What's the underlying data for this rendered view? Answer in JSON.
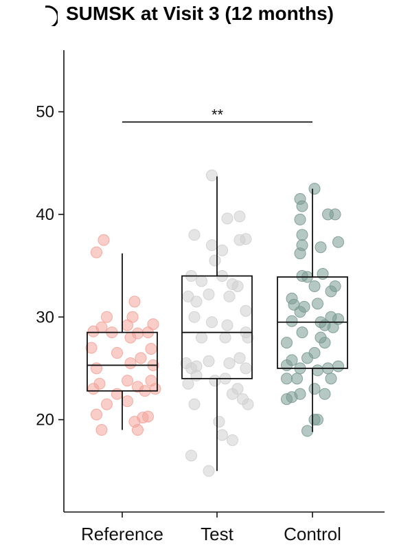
{
  "chart_data": {
    "type": "box",
    "title": "SUMSK at Visit 3 (12 months)",
    "xlabel": "",
    "ylabel": "",
    "categories": [
      "Reference",
      "Test",
      "Control"
    ],
    "ylim": [
      11,
      56
    ],
    "yticks": [
      20,
      30,
      40,
      50
    ],
    "grid": false,
    "colors": {
      "Reference": "#f4a49a",
      "Test": "#cfcfcf",
      "Control": "#7a9a92"
    },
    "boxes": [
      {
        "category": "Reference",
        "min": 19.0,
        "q1": 22.8,
        "median": 25.3,
        "q3": 28.5,
        "max": 36.2
      },
      {
        "category": "Test",
        "min": 15.0,
        "q1": 24.0,
        "median": 28.5,
        "q3": 34.0,
        "max": 43.7
      },
      {
        "category": "Control",
        "min": 18.8,
        "q1": 25.0,
        "median": 29.5,
        "q3": 33.9,
        "max": 42.5
      }
    ],
    "points": {
      "Reference": [
        [
          -0.18,
          37.5
        ],
        [
          -0.25,
          36.3
        ],
        [
          0.12,
          31.5
        ],
        [
          -0.15,
          30.0
        ],
        [
          0.1,
          30.0
        ],
        [
          -0.2,
          29.0
        ],
        [
          0.05,
          29.2
        ],
        [
          0.3,
          29.3
        ],
        [
          -0.28,
          28.6
        ],
        [
          -0.1,
          28.5
        ],
        [
          0.15,
          28.4
        ],
        [
          0.25,
          28.5
        ],
        [
          0.08,
          28.0
        ],
        [
          -0.3,
          27.0
        ],
        [
          0.28,
          26.9
        ],
        [
          -0.05,
          26.5
        ],
        [
          0.18,
          26.0
        ],
        [
          -0.25,
          25.0
        ],
        [
          0.08,
          25.5
        ],
        [
          0.3,
          25.3
        ],
        [
          -0.22,
          23.5
        ],
        [
          0.05,
          23.8
        ],
        [
          0.15,
          23.2
        ],
        [
          0.28,
          23.8
        ],
        [
          -0.28,
          23.0
        ],
        [
          -0.05,
          22.5
        ],
        [
          0.22,
          22.8
        ],
        [
          0.32,
          23.0
        ],
        [
          -0.15,
          21.5
        ],
        [
          0.05,
          21.8
        ],
        [
          -0.25,
          20.5
        ],
        [
          0.2,
          20.2
        ],
        [
          0.12,
          19.8
        ],
        [
          0.25,
          20.3
        ],
        [
          -0.2,
          19.0
        ],
        [
          0.15,
          19.0
        ]
      ],
      "Test": [
        [
          -0.05,
          43.8
        ],
        [
          0.22,
          39.8
        ],
        [
          0.1,
          39.6
        ],
        [
          -0.22,
          38.0
        ],
        [
          0.28,
          37.6
        ],
        [
          0.22,
          37.5
        ],
        [
          -0.05,
          37.0
        ],
        [
          0.05,
          36.5
        ],
        [
          -0.02,
          35.5
        ],
        [
          -0.25,
          34.0
        ],
        [
          0.05,
          34.0
        ],
        [
          -0.15,
          33.5
        ],
        [
          0.15,
          33.2
        ],
        [
          0.2,
          33.0
        ],
        [
          -0.28,
          32.0
        ],
        [
          -0.08,
          32.2
        ],
        [
          0.12,
          32.0
        ],
        [
          -0.2,
          31.5
        ],
        [
          0.28,
          30.6
        ],
        [
          -0.22,
          30.0
        ],
        [
          -0.05,
          29.5
        ],
        [
          0.1,
          29.2
        ],
        [
          0.28,
          28.5
        ],
        [
          -0.15,
          28.0
        ],
        [
          0.08,
          28.0
        ],
        [
          0.3,
          28.0
        ],
        [
          0.22,
          26.0
        ],
        [
          -0.3,
          25.5
        ],
        [
          -0.08,
          25.7
        ],
        [
          0.12,
          25.5
        ],
        [
          -0.25,
          25.0
        ],
        [
          -0.2,
          25.2
        ],
        [
          0.28,
          25.0
        ],
        [
          -0.2,
          24.3
        ],
        [
          0.08,
          24.0
        ],
        [
          -0.28,
          23.5
        ],
        [
          -0.02,
          23.8
        ],
        [
          0.2,
          23.0
        ],
        [
          0.15,
          22.5
        ],
        [
          0.25,
          22.0
        ],
        [
          0.3,
          21.5
        ],
        [
          -0.22,
          21.5
        ],
        [
          0.02,
          19.8
        ],
        [
          0.05,
          18.5
        ],
        [
          0.15,
          18.0
        ],
        [
          -0.25,
          16.5
        ],
        [
          -0.08,
          15.0
        ]
      ],
      "Control": [
        [
          0.02,
          42.5
        ],
        [
          -0.12,
          41.5
        ],
        [
          -0.1,
          40.8
        ],
        [
          0.15,
          40.0
        ],
        [
          0.22,
          40.0
        ],
        [
          -0.12,
          39.5
        ],
        [
          -0.1,
          38.0
        ],
        [
          0.25,
          37.3
        ],
        [
          -0.1,
          37.0
        ],
        [
          0.08,
          36.8
        ],
        [
          -0.12,
          36.2
        ],
        [
          0.1,
          34.2
        ],
        [
          -0.1,
          34.0
        ],
        [
          -0.05,
          33.9
        ],
        [
          0.02,
          33.0
        ],
        [
          0.22,
          33.0
        ],
        [
          0.18,
          32.5
        ],
        [
          -0.2,
          31.8
        ],
        [
          0.05,
          31.3
        ],
        [
          -0.18,
          31.2
        ],
        [
          -0.08,
          31.0
        ],
        [
          -0.12,
          30.5
        ],
        [
          0.18,
          30.0
        ],
        [
          0.25,
          29.8
        ],
        [
          0.08,
          29.5
        ],
        [
          -0.2,
          29.6
        ],
        [
          0.12,
          29.2
        ],
        [
          0.2,
          29.0
        ],
        [
          -0.1,
          28.5
        ],
        [
          0.08,
          28.0
        ],
        [
          0.12,
          27.5
        ],
        [
          -0.25,
          27.5
        ],
        [
          0.02,
          26.5
        ],
        [
          -0.05,
          26.0
        ],
        [
          -0.2,
          25.8
        ],
        [
          -0.25,
          25.3
        ],
        [
          -0.12,
          25.0
        ],
        [
          0.15,
          25.0
        ],
        [
          0.25,
          25.2
        ],
        [
          0.05,
          24.8
        ],
        [
          -0.15,
          24.0
        ],
        [
          -0.25,
          24.0
        ],
        [
          0.18,
          24.0
        ],
        [
          0.02,
          23.0
        ],
        [
          -0.12,
          22.5
        ],
        [
          0.12,
          22.5
        ],
        [
          -0.2,
          22.2
        ],
        [
          -0.25,
          22.0
        ],
        [
          0.05,
          20.0
        ],
        [
          0.02,
          20.0
        ],
        [
          -0.05,
          18.9
        ]
      ]
    },
    "significance": [
      {
        "from": "Reference",
        "to": "Control",
        "y": 49,
        "label": "**"
      }
    ]
  }
}
